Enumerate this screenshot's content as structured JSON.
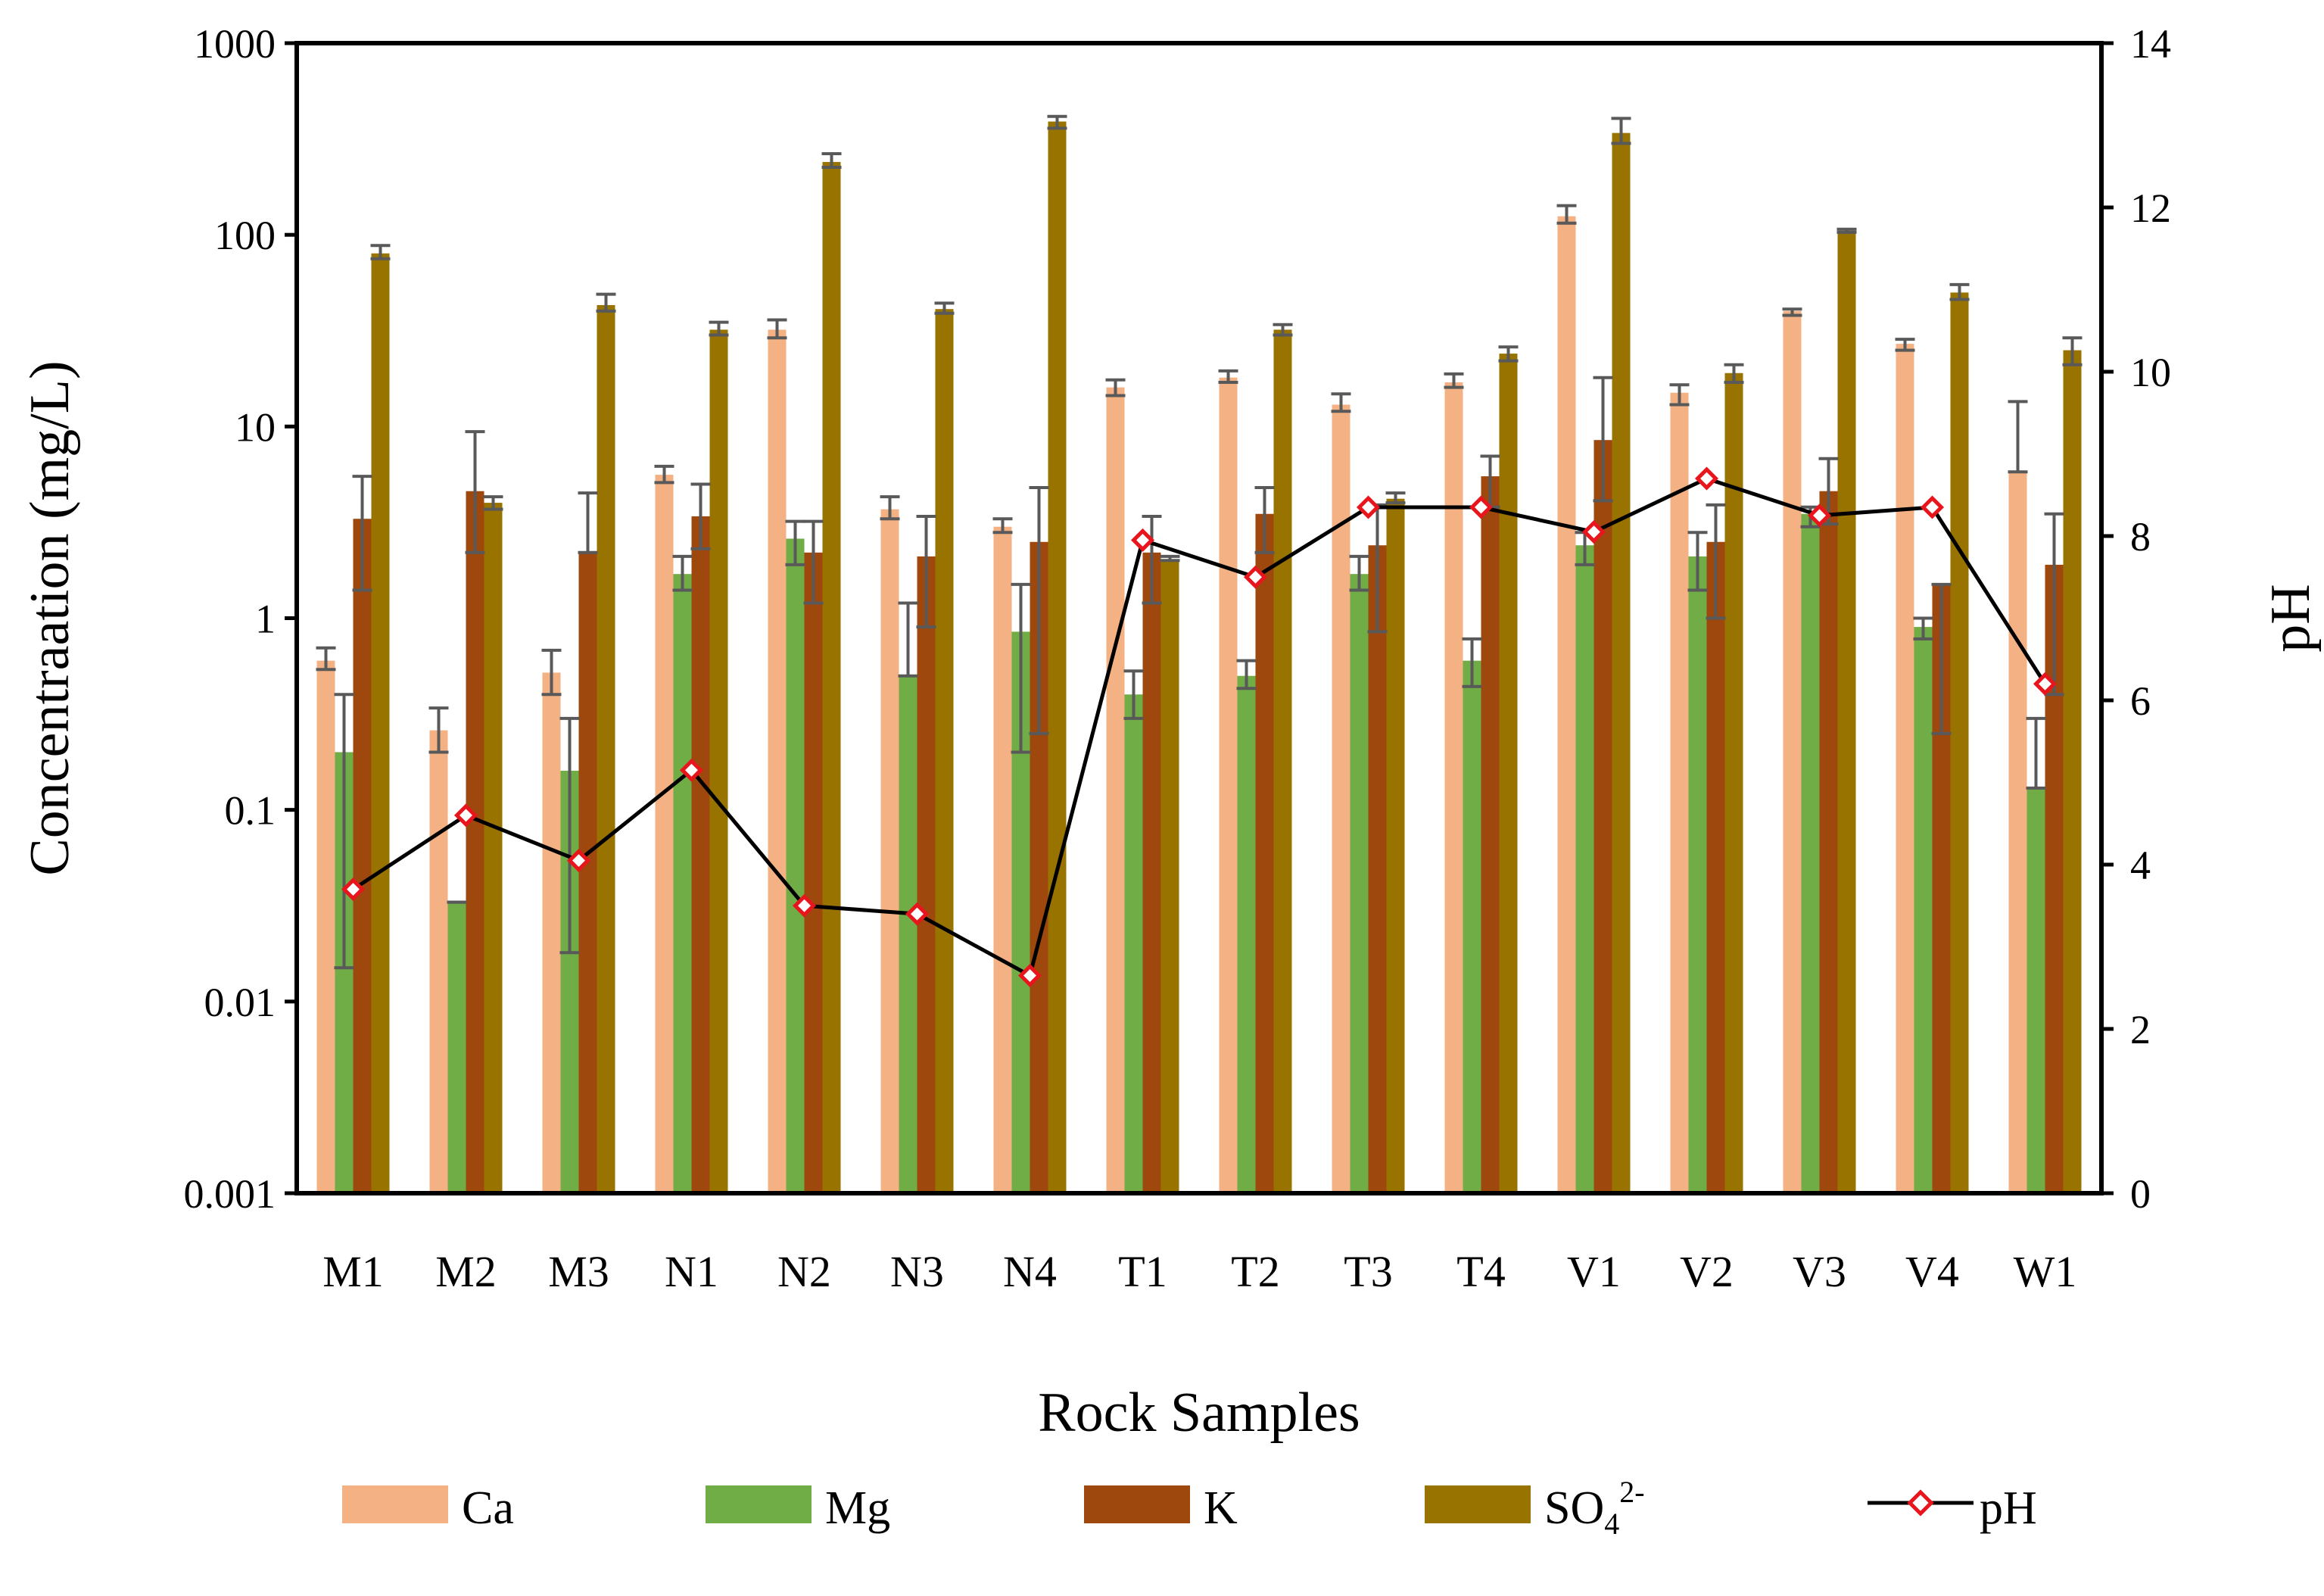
{
  "chart_data": {
    "type": "bar",
    "title": "",
    "xlabel": "Rock Samples",
    "ylabel": "Concentraation (mg/L)",
    "y2label": "pH",
    "yscale": "log",
    "ylim": [
      0.001,
      1000
    ],
    "y2lim": [
      0,
      14
    ],
    "y_ticks": [
      0.001,
      0.01,
      0.1,
      1,
      10,
      100,
      1000
    ],
    "y_tick_labels": [
      "0.001",
      "0.01",
      "0.1",
      "1",
      "10",
      "100",
      "1000"
    ],
    "y2_ticks": [
      0,
      2,
      4,
      6,
      8,
      10,
      12,
      14
    ],
    "y2_tick_labels": [
      "0",
      "2",
      "4",
      "6",
      "8",
      "10",
      "12",
      "14"
    ],
    "grid": false,
    "legend_position": "bottom",
    "categories": [
      "M1",
      "M2",
      "M3",
      "N1",
      "N2",
      "N3",
      "N4",
      "T1",
      "T2",
      "T3",
      "T4",
      "V1",
      "V2",
      "V3",
      "V4",
      "W1"
    ],
    "series": [
      {
        "name": "Ca",
        "type": "bar",
        "axis": "left",
        "color": "#F4B183",
        "values": [
          0.6,
          0.26,
          0.52,
          5.6,
          32,
          3.7,
          3.0,
          16,
          18,
          13,
          17,
          125,
          15,
          40,
          27,
          5.8
        ],
        "err_low": [
          0.54,
          0.2,
          0.4,
          5.1,
          29,
          3.3,
          2.8,
          14.5,
          17,
          12,
          16,
          115,
          13,
          38,
          25,
          5.8
        ],
        "err_high": [
          0.7,
          0.34,
          0.68,
          6.2,
          36,
          4.3,
          3.3,
          17.5,
          19.5,
          14.8,
          18.8,
          142,
          16.5,
          41,
          28.5,
          13.5
        ]
      },
      {
        "name": "Mg",
        "type": "bar",
        "axis": "left",
        "color": "#70AD47",
        "values": [
          0.2,
          0.033,
          0.16,
          1.7,
          2.6,
          0.5,
          0.85,
          0.4,
          0.5,
          1.7,
          0.6,
          2.4,
          2.1,
          3.5,
          0.9,
          0.13
        ],
        "err_low": [
          0.015,
          0.033,
          0.018,
          1.4,
          1.9,
          0.5,
          0.2,
          0.3,
          0.43,
          1.4,
          0.44,
          1.9,
          1.4,
          3.0,
          0.78,
          0.13
        ],
        "err_high": [
          0.4,
          0.033,
          0.3,
          2.1,
          3.2,
          1.2,
          1.5,
          0.53,
          0.6,
          2.1,
          0.78,
          2.8,
          2.8,
          3.8,
          1.0,
          0.3
        ]
      },
      {
        "name": "K",
        "type": "bar",
        "axis": "left",
        "color": "#9E480E",
        "values": [
          3.3,
          4.6,
          2.2,
          3.4,
          2.2,
          2.1,
          2.5,
          2.2,
          3.5,
          2.4,
          5.5,
          8.5,
          2.5,
          4.6,
          1.5,
          1.9
        ],
        "err_low": [
          1.4,
          2.2,
          2.2,
          2.3,
          1.2,
          0.9,
          0.25,
          1.2,
          2.2,
          0.85,
          3.8,
          4.1,
          1.0,
          3.1,
          0.25,
          0.4
        ],
        "err_high": [
          5.5,
          9.4,
          4.5,
          5.0,
          3.2,
          3.4,
          4.8,
          3.4,
          4.8,
          3.9,
          7.0,
          18,
          3.9,
          6.8,
          1.5,
          3.5
        ]
      },
      {
        "name": "SO₄²⁻",
        "type": "bar",
        "axis": "left",
        "color": "#997300",
        "values": [
          80,
          4.0,
          43,
          32,
          240,
          41,
          390,
          2.0,
          32,
          4.2,
          24,
          340,
          19,
          105,
          50,
          25
        ],
        "err_low": [
          75,
          3.7,
          40,
          30,
          225,
          39,
          360,
          2.0,
          30,
          4.0,
          22,
          300,
          17,
          103,
          46,
          21
        ],
        "err_high": [
          88,
          4.3,
          49,
          35,
          265,
          44,
          415,
          2.1,
          34,
          4.5,
          26,
          405,
          21,
          107,
          55,
          29
        ]
      },
      {
        "name": "pH",
        "type": "line",
        "axis": "right",
        "color": "#000000",
        "marker_color": "#E8161C",
        "values": [
          3.7,
          4.6,
          4.05,
          5.15,
          3.5,
          3.4,
          2.65,
          7.95,
          7.5,
          8.35,
          8.35,
          8.05,
          8.7,
          8.25,
          8.35,
          6.2
        ]
      }
    ],
    "legend": {
      "ca": "Ca",
      "mg": "Mg",
      "k": "K",
      "so4_base": "SO",
      "so4_sub": "4",
      "so4_sup": "2-",
      "ph": "pH"
    }
  }
}
